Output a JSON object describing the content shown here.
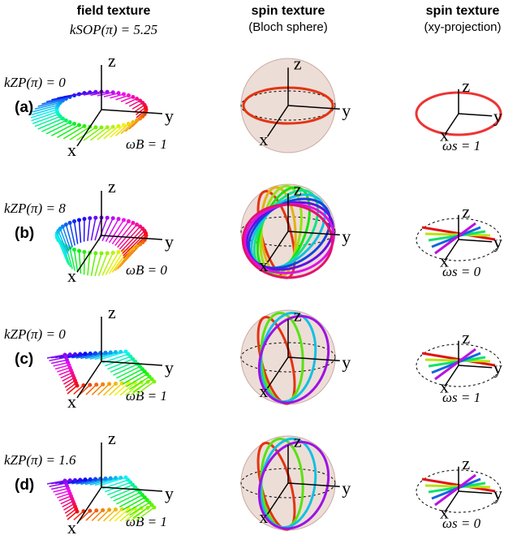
{
  "headers": [
    {
      "title": "field texture",
      "subtitle": "kSOP(π) = 5.25"
    },
    {
      "title": "spin texture",
      "subtitle": "(Bloch sphere)"
    },
    {
      "title": "spin texture",
      "subtitle": "(xy-projection)"
    }
  ],
  "axes": {
    "x": "x",
    "y": "y",
    "z": "z"
  },
  "rows": [
    {
      "label": "(a)",
      "k_label": "kZP(π) = 0",
      "omega_B": "ωB = 1",
      "omega_s": "ωs = 1"
    },
    {
      "label": "(b)",
      "k_label": "kZP(π) = 8",
      "omega_B": "ωB = 0",
      "omega_s": "ωs = 0"
    },
    {
      "label": "(c)",
      "k_label": "kZP(π) = 0",
      "omega_B": "ωB = 1",
      "omega_s": "ωs = 1"
    },
    {
      "label": "(d)",
      "k_label": "kZP(π) = 1.6",
      "omega_B": "ωB = 1",
      "omega_s": "ωs = 0"
    }
  ]
}
